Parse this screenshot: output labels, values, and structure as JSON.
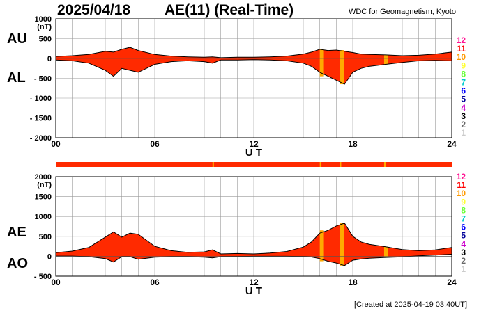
{
  "header": {
    "date": "2025/04/18",
    "title": "AE(11) (Real-Time)",
    "source": "WDC for Geomagnetism, Kyoto"
  },
  "footer": {
    "created": "[Created at 2025-04-19 03:40UT]"
  },
  "colors": {
    "fill": "#ff2a00",
    "outline": "#000000",
    "station_band": "#ff2a00",
    "highlight_band": "#ffaa00",
    "grid": "#999999"
  },
  "station_scale": {
    "labels": [
      "12",
      "11",
      "10",
      "9",
      "8",
      "7",
      "6",
      "5",
      "4",
      "3",
      "2",
      "1"
    ],
    "colors": [
      "#ff1493",
      "#ff0000",
      "#ff9900",
      "#ffff33",
      "#66ff33",
      "#00cccc",
      "#0000ff",
      "#000099",
      "#cc00cc",
      "#000000",
      "#666666",
      "#cccccc"
    ]
  },
  "chart_data": [
    {
      "type": "area",
      "name": "upper",
      "series_labels": [
        "AU",
        "AL"
      ],
      "unit": "(nT)",
      "xlabel": "U T",
      "xlim": [
        0,
        24
      ],
      "ylim": [
        -2000,
        1000
      ],
      "xticks": [
        0,
        6,
        12,
        18,
        24
      ],
      "xtick_labels": [
        "00",
        "06",
        "12",
        "18",
        "24"
      ],
      "yticks": [
        1000,
        500,
        0,
        -500,
        -1000,
        -1500,
        -2000
      ],
      "ytick_labels": [
        "1000",
        "500",
        "0",
        "- 500",
        "- 1000",
        "- 1500",
        "- 2000"
      ],
      "grid": true,
      "highlights": [
        [
          16.0,
          16.25
        ],
        [
          17.2,
          17.45
        ],
        [
          19.9,
          20.15
        ]
      ],
      "x": [
        0,
        1,
        2,
        3,
        3.5,
        4,
        4.5,
        5,
        6,
        7,
        8,
        9,
        9.5,
        10,
        11,
        12,
        13,
        14,
        15,
        15.5,
        16,
        16.5,
        17,
        17.5,
        18,
        18.5,
        19,
        20,
        21,
        22,
        23,
        24
      ],
      "au": [
        50,
        70,
        100,
        180,
        160,
        230,
        280,
        200,
        100,
        60,
        40,
        30,
        40,
        20,
        30,
        30,
        40,
        60,
        110,
        160,
        230,
        200,
        210,
        180,
        150,
        110,
        100,
        90,
        70,
        80,
        110,
        160
      ],
      "al": [
        -40,
        -60,
        -120,
        -300,
        -450,
        -250,
        -300,
        -350,
        -150,
        -80,
        -60,
        -80,
        -120,
        -40,
        -40,
        -30,
        -40,
        -60,
        -120,
        -200,
        -350,
        -450,
        -550,
        -650,
        -350,
        -250,
        -200,
        -150,
        -100,
        -60,
        -50,
        -60
      ]
    },
    {
      "type": "area",
      "name": "lower",
      "series_labels": [
        "AE",
        "AO"
      ],
      "unit": "(nT)",
      "xlabel": "U T",
      "xlim": [
        0,
        24
      ],
      "ylim": [
        -500,
        2000
      ],
      "xticks": [
        0,
        6,
        12,
        18,
        24
      ],
      "xtick_labels": [
        "00",
        "06",
        "12",
        "18",
        "24"
      ],
      "yticks": [
        2000,
        1500,
        1000,
        500,
        0,
        -500
      ],
      "ytick_labels": [
        "2000",
        "1500",
        "1000",
        "500",
        "0",
        "- 500"
      ],
      "grid": true,
      "highlights": [
        [
          16.0,
          16.25
        ],
        [
          17.2,
          17.45
        ],
        [
          19.9,
          20.15
        ]
      ],
      "x": [
        0,
        1,
        2,
        3,
        3.5,
        4,
        4.5,
        5,
        6,
        7,
        8,
        9,
        9.5,
        10,
        11,
        12,
        13,
        14,
        15,
        15.5,
        16,
        16.5,
        17,
        17.5,
        18,
        18.5,
        19,
        20,
        21,
        22,
        23,
        24
      ],
      "ae": [
        90,
        130,
        220,
        480,
        610,
        480,
        580,
        550,
        250,
        140,
        100,
        110,
        160,
        60,
        70,
        60,
        80,
        120,
        230,
        360,
        580,
        650,
        760,
        830,
        500,
        360,
        300,
        240,
        170,
        140,
        160,
        220
      ],
      "ao": [
        5,
        5,
        -10,
        -60,
        -145,
        -10,
        -10,
        -75,
        -25,
        -10,
        -10,
        -25,
        -40,
        -10,
        -5,
        0,
        0,
        0,
        -5,
        -20,
        -60,
        -125,
        -170,
        -235,
        -100,
        -70,
        -50,
        -30,
        -15,
        10,
        30,
        50
      ]
    }
  ]
}
